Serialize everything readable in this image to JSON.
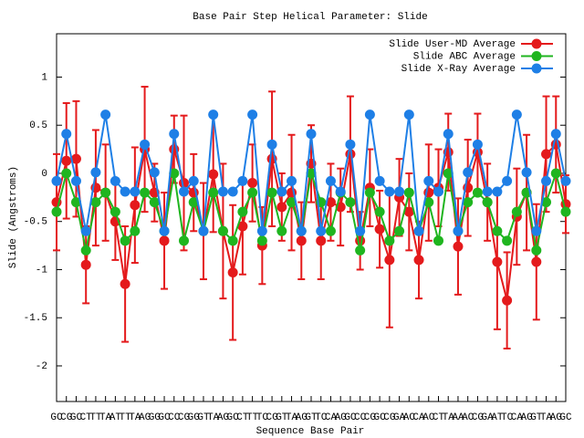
{
  "chart_data": {
    "type": "line",
    "title": "Base Pair Step Helical Parameter: Slide",
    "x_label": "Sequence Base Pair",
    "y_label": "Slide (Angstroms)",
    "categories": [
      "GC",
      "CG",
      "GC",
      "CT",
      "TT",
      "TA",
      "AT",
      "TT",
      "TA",
      "AG",
      "GG",
      "GC",
      "CC",
      "CG",
      "GG",
      "GT",
      "TA",
      "AG",
      "GC",
      "CT",
      "TT",
      "TC",
      "CG",
      "GT",
      "TA",
      "AG",
      "GT",
      "TC",
      "CA",
      "AG",
      "GC",
      "CC",
      "CG",
      "GC",
      "CG",
      "GA",
      "AC",
      "CA",
      "AC",
      "CT",
      "TA",
      "AA",
      "AC",
      "CG",
      "GA",
      "AT",
      "TC",
      "CA",
      "AG",
      "GT",
      "TA",
      "AG",
      "GC"
    ],
    "xlim": [
      0,
      52
    ],
    "ylim": [
      -2.37,
      1.45
    ],
    "yticks": [
      -2,
      -1.5,
      -1,
      -0.5,
      0,
      0.5,
      1
    ],
    "legend": "top-right",
    "series": [
      {
        "name": "Slide User-MD Average",
        "color": "#e41a1c",
        "values": [
          -0.3,
          0.13,
          0.15,
          -0.95,
          -0.15,
          -0.2,
          -0.5,
          -1.15,
          -0.33,
          0.25,
          -0.2,
          -0.7,
          0.25,
          -0.1,
          -0.2,
          -0.6,
          -0.01,
          -0.6,
          -1.03,
          -0.55,
          -0.1,
          -0.75,
          0.15,
          -0.35,
          -0.2,
          -0.7,
          0.1,
          -0.7,
          -0.3,
          -0.35,
          0.2,
          -0.7,
          -0.15,
          -0.58,
          -0.9,
          -0.25,
          -0.4,
          -0.9,
          -0.2,
          -0.15,
          0.22,
          -0.76,
          -0.15,
          0.22,
          -0.3,
          -0.92,
          -1.32,
          -0.45,
          -0.2,
          -0.92,
          0.2,
          0.3,
          -0.32
        ],
        "errors": [
          0.5,
          0.6,
          0.6,
          0.4,
          0.6,
          0.5,
          0.4,
          0.6,
          0.6,
          0.65,
          0.3,
          0.5,
          0.35,
          0.7,
          0.4,
          0.5,
          0.6,
          0.7,
          0.7,
          0.5,
          0.4,
          0.4,
          0.7,
          0.35,
          0.6,
          0.4,
          0.4,
          0.4,
          0.4,
          0.4,
          0.6,
          0.3,
          0.4,
          0.4,
          0.7,
          0.4,
          0.4,
          0.4,
          0.5,
          0.4,
          0.4,
          0.5,
          0.5,
          0.4,
          0.4,
          0.7,
          0.5,
          0.5,
          0.6,
          0.6,
          0.6,
          0.5,
          0.3
        ]
      },
      {
        "name": "Slide ABC Average",
        "color": "#1fb51f",
        "values": [
          -0.4,
          0.0,
          -0.3,
          -0.8,
          -0.3,
          -0.2,
          -0.4,
          -0.7,
          -0.6,
          -0.2,
          -0.3,
          -0.6,
          0.0,
          -0.7,
          -0.3,
          -0.6,
          -0.2,
          -0.6,
          -0.7,
          -0.4,
          -0.2,
          -0.7,
          -0.2,
          -0.6,
          -0.3,
          -0.6,
          0.0,
          -0.3,
          -0.6,
          -0.2,
          -0.3,
          -0.8,
          -0.2,
          -0.4,
          -0.7,
          -0.6,
          -0.2,
          -0.6,
          -0.3,
          -0.7,
          0.0,
          -0.6,
          -0.3,
          -0.2,
          -0.3,
          -0.6,
          -0.7,
          -0.4,
          -0.2,
          -0.8,
          -0.3,
          0.0,
          -0.4
        ]
      },
      {
        "name": "Slide X-Ray Average",
        "color": "#1e7fe6",
        "values": [
          -0.08,
          0.41,
          -0.08,
          -0.6,
          0.01,
          0.61,
          -0.08,
          -0.19,
          -0.19,
          0.3,
          0.01,
          -0.6,
          0.41,
          -0.19,
          -0.08,
          -0.6,
          0.61,
          -0.19,
          -0.19,
          -0.08,
          0.61,
          -0.6,
          0.3,
          -0.19,
          -0.08,
          -0.6,
          0.41,
          -0.6,
          -0.08,
          -0.19,
          0.3,
          -0.6,
          0.61,
          -0.08,
          -0.19,
          -0.19,
          0.61,
          -0.6,
          -0.08,
          -0.19,
          0.41,
          -0.6,
          0.01,
          0.3,
          -0.19,
          -0.19,
          -0.08,
          0.61,
          0.01,
          -0.6,
          -0.08,
          0.41,
          -0.08
        ]
      }
    ]
  }
}
